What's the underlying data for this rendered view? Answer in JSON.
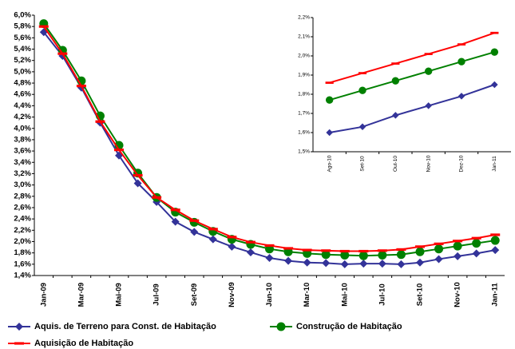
{
  "chart_data": [
    {
      "type": "line",
      "categories": [
        "Jan-09",
        null,
        "Mar-09",
        null,
        "Mai-09",
        null,
        "Jul-09",
        null,
        "Set-09",
        null,
        "Nov-09",
        null,
        "Jan-10",
        null,
        "Mar-10",
        null,
        "Mai-10",
        null,
        "Jul-10",
        null,
        "Set-10",
        null,
        "Nov-10",
        null,
        "Jan-11"
      ],
      "ylim": [
        1.4,
        6.0
      ],
      "yticks": [
        {
          "value": 1.4,
          "label": "1,4%"
        },
        {
          "value": 1.6,
          "label": "1,6%"
        },
        {
          "value": 1.8,
          "label": "1,8%"
        },
        {
          "value": 2.0,
          "label": "2,0%"
        },
        {
          "value": 2.2,
          "label": "2,2%"
        },
        {
          "value": 2.4,
          "label": "2,4%"
        },
        {
          "value": 2.6,
          "label": "2,6%"
        },
        {
          "value": 2.8,
          "label": "2,8%"
        },
        {
          "value": 3.0,
          "label": "3,0%"
        },
        {
          "value": 3.2,
          "label": "3,2%"
        },
        {
          "value": 3.4,
          "label": "3,4%"
        },
        {
          "value": 3.6,
          "label": "3,6%"
        },
        {
          "value": 3.8,
          "label": "3,8%"
        },
        {
          "value": 4.0,
          "label": "4,0%"
        },
        {
          "value": 4.2,
          "label": "4,2%"
        },
        {
          "value": 4.4,
          "label": "4,4%"
        },
        {
          "value": 4.6,
          "label": "4,6%"
        },
        {
          "value": 4.8,
          "label": "4,8%"
        },
        {
          "value": 5.0,
          "label": "5,0%"
        },
        {
          "value": 5.2,
          "label": "5,2%"
        },
        {
          "value": 5.4,
          "label": "5,4%"
        },
        {
          "value": 5.6,
          "label": "5,6%"
        },
        {
          "value": 5.8,
          "label": "5,8%"
        },
        {
          "value": 6.0,
          "label": "6,0%"
        }
      ],
      "grid": false,
      "series": [
        {
          "name": "Aquis. de Terreno para Const. de Habitação",
          "color": "#333399",
          "marker": "diamond",
          "values": [
            5.7,
            5.28,
            4.72,
            4.1,
            3.52,
            3.03,
            2.7,
            2.35,
            2.17,
            2.04,
            1.91,
            1.81,
            1.71,
            1.66,
            1.63,
            1.62,
            1.6,
            1.61,
            1.61,
            1.6,
            1.63,
            1.69,
            1.74,
            1.79,
            1.85
          ]
        },
        {
          "name": "Construção de Habitação",
          "color": "#008000",
          "marker": "circle",
          "values": [
            5.85,
            5.38,
            4.84,
            4.22,
            3.7,
            3.21,
            2.78,
            2.52,
            2.34,
            2.18,
            2.04,
            1.95,
            1.87,
            1.82,
            1.79,
            1.77,
            1.76,
            1.75,
            1.76,
            1.77,
            1.82,
            1.87,
            1.92,
            1.97,
            2.02
          ]
        },
        {
          "name": "Aquisição de Habitação",
          "color": "#ff0000",
          "marker": "dash",
          "values": [
            5.8,
            5.32,
            4.75,
            4.12,
            3.62,
            3.17,
            2.78,
            2.56,
            2.37,
            2.22,
            2.08,
            1.99,
            1.93,
            1.88,
            1.85,
            1.84,
            1.83,
            1.83,
            1.84,
            1.86,
            1.91,
            1.96,
            2.01,
            2.06,
            2.12
          ]
        }
      ]
    },
    {
      "type": "line",
      "categories": [
        "Ago-10",
        "Set-10",
        "Out-10",
        "Nov-10",
        "Dez-10",
        "Jan-11"
      ],
      "ylim": [
        1.5,
        2.2
      ],
      "yticks": [
        {
          "value": 1.5,
          "label": "1,5%"
        },
        {
          "value": 1.6,
          "label": "1,6%"
        },
        {
          "value": 1.7,
          "label": "1,7%"
        },
        {
          "value": 1.8,
          "label": "1,8%"
        },
        {
          "value": 1.9,
          "label": "1,9%"
        },
        {
          "value": 2.0,
          "label": "2,0%"
        },
        {
          "value": 2.1,
          "label": "2,1%"
        },
        {
          "value": 2.2,
          "label": "2,2%"
        }
      ],
      "grid": false,
      "series": [
        {
          "color": "#333399",
          "marker": "diamond",
          "values": [
            1.6,
            1.63,
            1.69,
            1.74,
            1.79,
            1.85
          ]
        },
        {
          "color": "#008000",
          "marker": "circle",
          "values": [
            1.77,
            1.82,
            1.87,
            1.92,
            1.97,
            2.02
          ]
        },
        {
          "color": "#ff0000",
          "marker": "dash",
          "values": [
            1.86,
            1.91,
            1.96,
            2.01,
            2.06,
            2.12
          ]
        }
      ]
    }
  ]
}
